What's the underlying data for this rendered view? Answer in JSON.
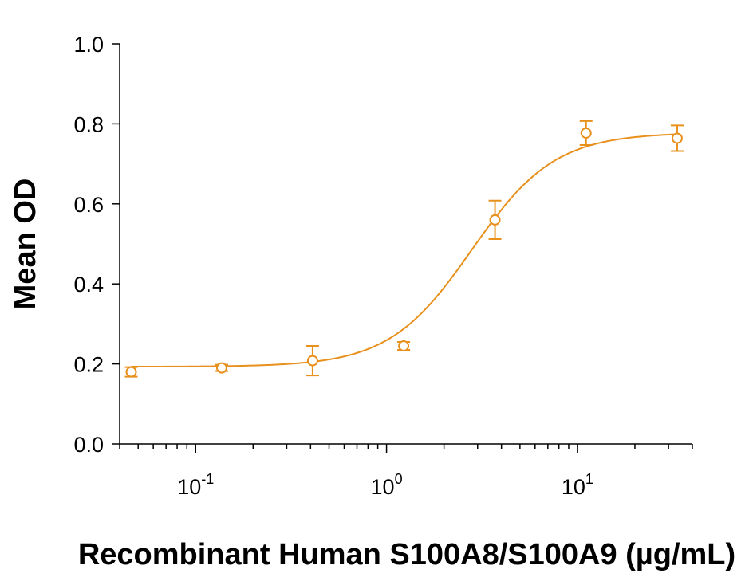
{
  "chart_data": {
    "type": "scatter",
    "title": "",
    "xlabel": "Recombinant Human S100A8/S100A9 (µg/mL)",
    "ylabel": "Mean OD",
    "x_scale": "log",
    "xlim": [
      0.04,
      40
    ],
    "ylim": [
      0.0,
      1.0
    ],
    "y_ticks": [
      0.0,
      0.2,
      0.4,
      0.6,
      0.8,
      1.0
    ],
    "y_tick_labels": [
      "0.0",
      "0.2",
      "0.4",
      "0.6",
      "0.8",
      "1.0"
    ],
    "x_ticks": [
      {
        "value": 0.1,
        "base": "10",
        "exponent": "-1"
      },
      {
        "value": 1,
        "base": "10",
        "exponent": "0"
      },
      {
        "value": 10,
        "base": "10",
        "exponent": "1"
      }
    ],
    "grid": false,
    "color": "#E8901C",
    "series": [
      {
        "marker": "open-circle",
        "x": [
          0.046,
          0.137,
          0.41,
          1.23,
          3.7,
          11.1,
          33.3
        ],
        "y": [
          0.18,
          0.19,
          0.208,
          0.245,
          0.56,
          0.777,
          0.764
        ],
        "error": [
          0.012,
          0.008,
          0.037,
          0.01,
          0.048,
          0.03,
          0.032
        ]
      }
    ],
    "fit_curve": {
      "model": "4PL",
      "bottom": 0.193,
      "top": 0.778,
      "ec50": 2.8,
      "hill": 2.0
    }
  }
}
